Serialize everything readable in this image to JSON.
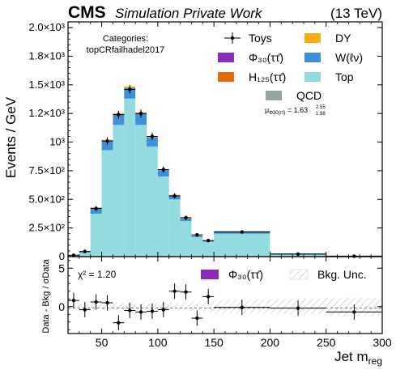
{
  "header": {
    "experiment": "CMS",
    "label": "Simulation Private Work",
    "energy": "(13 TeV)"
  },
  "categories_title": "Categories:",
  "category_name": "topCRfailhadel2017",
  "mu_label": "μ",
  "mu_subscript": "Φ30(ττ̄)",
  "mu_value": " = 1.63",
  "mu_up": "2.55",
  "mu_down": "1.98",
  "chi2_text": "χ² = 1.20",
  "colors": {
    "top": "#94dbe0",
    "w": "#3e90d9",
    "h125": "#e8680c",
    "dy": "#fbad18",
    "qcd": "#94a4a2",
    "signal": "#8a2cbb",
    "toys": "#000000"
  },
  "chart_data": [
    {
      "type": "bar",
      "stacked": true,
      "xlabel": "Jet m",
      "xlabel_sub": "reg",
      "ylabel": "Events / GeV",
      "xlim": [
        20,
        300
      ],
      "ylim": [
        0,
        2050
      ],
      "yscale_label": "×10³ / ×10²",
      "x_ticks": [
        50,
        100,
        150,
        200,
        250,
        300
      ],
      "y_ticks": [
        {
          "value": 0,
          "label": "0"
        },
        {
          "value": 250,
          "label": "2.5×10²"
        },
        {
          "value": 500,
          "label": "5.0×10²"
        },
        {
          "value": 750,
          "label": "7.5×10²"
        },
        {
          "value": 1000,
          "label": "10³"
        },
        {
          "value": 1250,
          "label": "1.2×10³"
        },
        {
          "value": 1500,
          "label": "1.5×10³"
        },
        {
          "value": 1750,
          "label": "1.8×10³"
        },
        {
          "value": 2000,
          "label": "2.0×10³"
        }
      ],
      "bin_edges": [
        20,
        30,
        40,
        50,
        60,
        70,
        80,
        90,
        100,
        110,
        120,
        130,
        140,
        150,
        200,
        250,
        300
      ],
      "series": [
        {
          "name": "Top",
          "color_key": "top",
          "values": [
            8,
            35,
            375,
            930,
            1150,
            1380,
            1150,
            960,
            700,
            500,
            310,
            170,
            130,
            200,
            24,
            4
          ]
        },
        {
          "name": "W(ℓν)",
          "color_key": "w",
          "values": [
            2,
            10,
            50,
            80,
            90,
            90,
            95,
            80,
            55,
            35,
            22,
            12,
            10,
            22,
            4,
            1
          ]
        },
        {
          "name": "H₁₂₅(ττ̄)",
          "color_key": "h125",
          "values": [
            0,
            0,
            2,
            4,
            5,
            6,
            5,
            4,
            3,
            2,
            1,
            1,
            0,
            0,
            0,
            0
          ]
        },
        {
          "name": "DY",
          "color_key": "dy",
          "values": [
            0,
            1,
            3,
            6,
            8,
            10,
            8,
            6,
            4,
            3,
            2,
            1,
            1,
            1,
            0,
            0
          ]
        },
        {
          "name": "Φ₃₀(ττ̄)",
          "color_key": "signal",
          "values": [
            0,
            0,
            0,
            0,
            0,
            0,
            0,
            0,
            0,
            0,
            0,
            0,
            0,
            0,
            0,
            0
          ]
        },
        {
          "name": "QCD",
          "color_key": "qcd",
          "values": [
            0,
            0,
            0,
            0,
            0,
            0,
            0,
            0,
            0,
            0,
            0,
            0,
            0,
            0,
            0,
            0
          ]
        }
      ],
      "toys": {
        "name": "Toys",
        "x": [
          25,
          35,
          45,
          55,
          65,
          75,
          85,
          95,
          105,
          115,
          125,
          135,
          145,
          175,
          225,
          275
        ],
        "y": [
          12,
          45,
          420,
          1010,
          1240,
          1460,
          1250,
          1050,
          760,
          530,
          340,
          190,
          140,
          215,
          22,
          4
        ],
        "yerr": [
          4,
          7,
          20,
          32,
          35,
          38,
          35,
          32,
          28,
          23,
          18,
          14,
          12,
          7,
          2,
          1
        ]
      },
      "legend": [
        {
          "label": "Toys",
          "key": "toys",
          "kind": "marker"
        },
        {
          "label": "DY",
          "key": "dy",
          "kind": "patch"
        },
        {
          "label": "Φ₃₀(ττ̄)",
          "key": "signal",
          "kind": "patch"
        },
        {
          "label": "W(ℓν)",
          "key": "w",
          "kind": "patch"
        },
        {
          "label": "H₁₂₅(ττ̄)",
          "key": "h125",
          "kind": "patch"
        },
        {
          "label": "Top",
          "key": "top",
          "kind": "patch"
        },
        {
          "label": "QCD",
          "key": "qcd",
          "kind": "patch"
        }
      ]
    },
    {
      "type": "scatter",
      "xlabel": "Jet m",
      "xlabel_sub": "reg",
      "ylabel": "Data - Bkg / σData",
      "xlim": [
        20,
        300
      ],
      "ylim": [
        -3.5,
        6.5
      ],
      "y_ticks": [
        0,
        5
      ],
      "x": [
        25,
        35,
        45,
        55,
        65,
        75,
        85,
        95,
        105,
        115,
        125,
        135,
        145,
        175,
        225,
        275
      ],
      "y": [
        0.8,
        -0.4,
        0.6,
        0.5,
        -2.1,
        -0.5,
        -0.7,
        -0.6,
        -0.4,
        2.0,
        1.9,
        -1.5,
        1.3,
        -0.1,
        -0.2,
        -0.7
      ],
      "band_halfwidth": [
        0.3,
        0.3,
        0.3,
        0.4,
        0.5,
        0.5,
        0.4,
        0.4,
        0.5,
        0.5,
        0.6,
        0.7,
        0.8,
        0.9,
        1.0,
        1.2
      ],
      "legend": [
        {
          "label": "Φ₃₀(ττ̄)",
          "key": "signal",
          "kind": "patch"
        },
        {
          "label": "Bkg. Unc.",
          "key": "unc",
          "kind": "hatch"
        }
      ]
    }
  ]
}
